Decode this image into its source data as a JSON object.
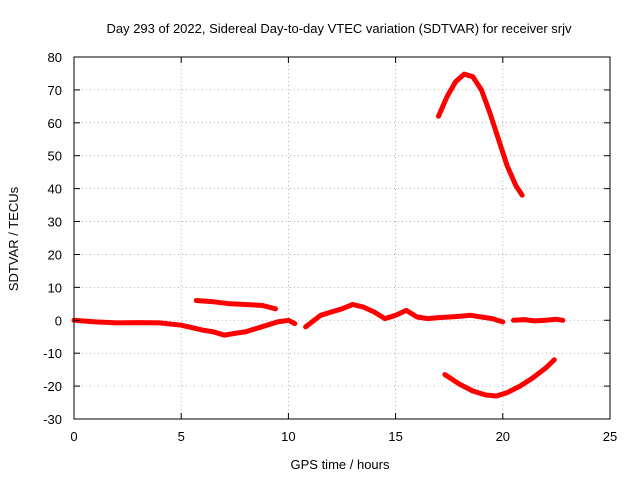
{
  "chart_data": {
    "type": "scatter",
    "title": "Day 293 of 2022, Sidereal Day-to-day VTEC variation (SDTVAR) for receiver srjv",
    "xlabel": "GPS time / hours",
    "ylabel": "SDTVAR / TECUs",
    "xlim": [
      0,
      25
    ],
    "ylim": [
      -30,
      80
    ],
    "xticks": [
      0,
      5,
      10,
      15,
      20,
      25
    ],
    "yticks": [
      -30,
      -20,
      -10,
      0,
      10,
      20,
      30,
      40,
      50,
      60,
      70,
      80
    ],
    "grid": true,
    "color": "#ff0000",
    "series": [
      {
        "name": "arc-main-baseline",
        "x": [
          0,
          1,
          2,
          3,
          4,
          5,
          6,
          6.5,
          7,
          7.5,
          8,
          8.5,
          9,
          9.5,
          10,
          10.3
        ],
        "y": [
          0,
          -0.5,
          -0.8,
          -0.7,
          -0.8,
          -1.5,
          -3,
          -3.5,
          -4.5,
          -4,
          -3.5,
          -2.5,
          -1.5,
          -0.5,
          0,
          -1
        ]
      },
      {
        "name": "arc-upper-short",
        "x": [
          5.7,
          6.5,
          7.3,
          8,
          8.8,
          9.4
        ],
        "y": [
          6,
          5.6,
          5,
          4.8,
          4.5,
          3.5
        ]
      },
      {
        "name": "arc-mid-segment",
        "x": [
          10.8,
          11.5,
          12,
          12.5,
          13,
          13.5,
          14,
          14.5,
          15,
          15.5,
          16,
          16.5,
          17,
          17.5,
          18,
          18.5,
          19,
          19.5,
          20
        ],
        "y": [
          -2,
          1.5,
          2.5,
          3.5,
          4.8,
          4,
          2.5,
          0.5,
          1.5,
          3,
          1,
          0.5,
          0.8,
          1,
          1.2,
          1.5,
          1,
          0.5,
          -0.5
        ]
      },
      {
        "name": "arc-late-baseline",
        "x": [
          20.5,
          21,
          21.5,
          22,
          22.5,
          22.8
        ],
        "y": [
          0,
          0.2,
          -0.2,
          0,
          0.3,
          0
        ]
      },
      {
        "name": "arc-high-peak",
        "x": [
          17,
          17.4,
          17.8,
          18.2,
          18.6,
          19,
          19.4,
          19.8,
          20.2,
          20.6,
          20.9
        ],
        "y": [
          62,
          68,
          72.5,
          74.8,
          74,
          70,
          63,
          55,
          47,
          41,
          38
        ]
      },
      {
        "name": "arc-low-trough",
        "x": [
          17.3,
          18,
          18.6,
          19.2,
          19.7,
          20.2,
          20.8,
          21.4,
          22,
          22.4
        ],
        "y": [
          -16.5,
          -19.5,
          -21.5,
          -22.7,
          -23,
          -22,
          -20,
          -17.5,
          -14.5,
          -12
        ]
      }
    ]
  }
}
